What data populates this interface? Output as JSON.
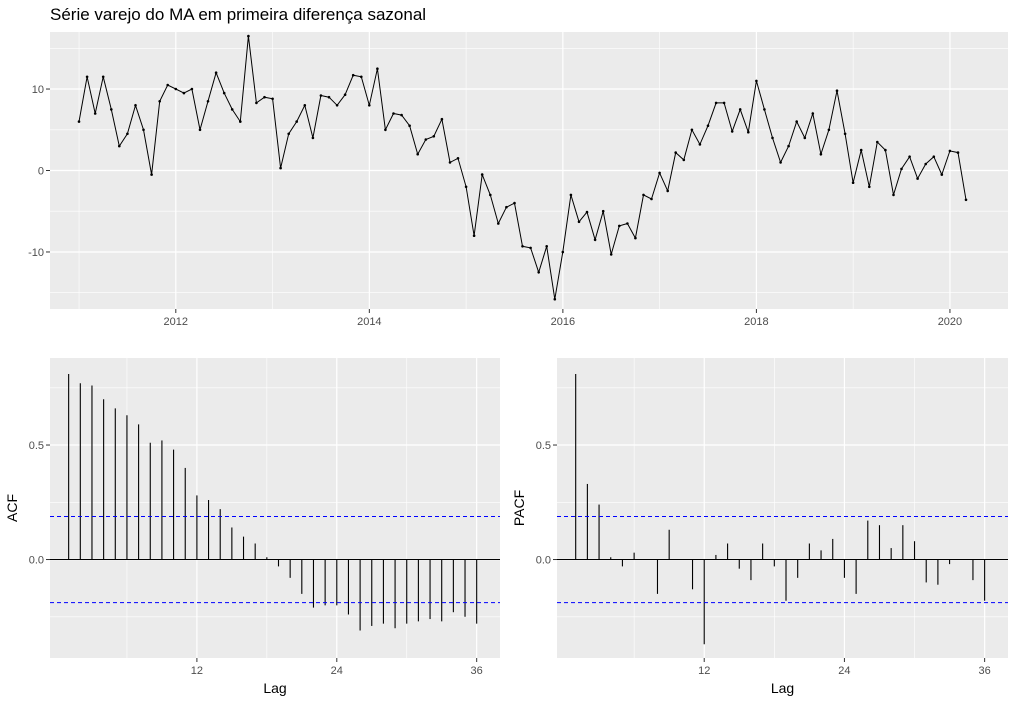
{
  "chart_data": [
    {
      "type": "line",
      "title": "Série varejo do MA em primeira diferença sazonal",
      "xlabel": "",
      "ylabel": "",
      "x_start": 2011.0,
      "x_step": 0.08333,
      "xlim": [
        2010.7,
        2020.6
      ],
      "ylim": [
        -17,
        17
      ],
      "x_ticks": [
        2012,
        2014,
        2016,
        2018,
        2020
      ],
      "x_tick_labels": [
        "2012",
        "2014",
        "2016",
        "2018",
        "2020"
      ],
      "y_ticks": [
        -10,
        0,
        10
      ],
      "y_tick_labels": [
        "-10",
        "0",
        "10"
      ],
      "grid": true,
      "series": [
        {
          "values": [
            6,
            11.5,
            7,
            11.5,
            7.5,
            3,
            4.5,
            8,
            5,
            -0.5,
            8.5,
            10.5,
            10,
            9.5,
            10,
            5,
            8.5,
            12,
            9.5,
            7.5,
            6,
            16.5,
            8.3,
            9,
            8.8,
            0.3,
            4.5,
            6,
            8,
            4,
            9.2,
            9,
            8,
            9.3,
            11.7,
            11.5,
            8,
            12.5,
            5,
            7,
            6.8,
            5.5,
            2,
            3.8,
            4.2,
            6.3,
            1,
            1.5,
            -2,
            -8,
            -0.5,
            -3,
            -6.5,
            -4.5,
            -4,
            -9.3,
            -9.5,
            -12.5,
            -9.3,
            -15.8,
            -10,
            -3,
            -6.3,
            -5.1,
            -8.5,
            -5,
            -10.3,
            -6.8,
            -6.5,
            -8.3,
            -3,
            -3.5,
            -0.3,
            -2.5,
            2.2,
            1.3,
            5,
            3.2,
            5.5,
            8.3,
            8.3,
            4.8,
            7.5,
            4.7,
            11,
            7.5,
            4,
            1,
            3,
            6,
            4,
            7,
            2,
            5,
            9.8,
            4.5,
            -1.5,
            2.5,
            -2,
            3.5,
            2.5,
            -3,
            0.2,
            1.7,
            -1,
            0.8,
            1.7,
            -0.5,
            2.4,
            2.2,
            -3.6
          ]
        }
      ]
    },
    {
      "type": "bar",
      "title": "",
      "xlabel": "Lag",
      "ylabel": "ACF",
      "xlim": [
        -0.6,
        38
      ],
      "ylim": [
        -0.43,
        0.88
      ],
      "x_ticks": [
        12,
        24,
        36
      ],
      "x_tick_labels": [
        "12",
        "24",
        "36"
      ],
      "y_ticks": [
        0,
        0.5
      ],
      "y_tick_labels": [
        "0.0",
        "0.5"
      ],
      "conf_limit": 0.188,
      "grid": true,
      "values": [
        0.81,
        0.77,
        0.76,
        0.7,
        0.66,
        0.63,
        0.59,
        0.51,
        0.52,
        0.48,
        0.4,
        0.28,
        0.26,
        0.22,
        0.14,
        0.1,
        0.07,
        0.01,
        -0.03,
        -0.08,
        -0.15,
        -0.21,
        -0.2,
        -0.2,
        -0.24,
        -0.31,
        -0.29,
        -0.28,
        -0.3,
        -0.28,
        -0.27,
        -0.26,
        -0.27,
        -0.23,
        -0.25,
        -0.28
      ]
    },
    {
      "type": "bar",
      "title": "",
      "xlabel": "Lag",
      "ylabel": "PACF",
      "xlim": [
        -0.6,
        38
      ],
      "ylim": [
        -0.43,
        0.88
      ],
      "x_ticks": [
        12,
        24,
        36
      ],
      "x_tick_labels": [
        "12",
        "24",
        "36"
      ],
      "y_ticks": [
        0,
        0.5
      ],
      "y_tick_labels": [
        "0.0",
        "0.5"
      ],
      "conf_limit": 0.188,
      "grid": true,
      "values": [
        0.81,
        0.33,
        0.24,
        0.01,
        -0.03,
        0.03,
        0.0,
        -0.15,
        0.13,
        0.0,
        -0.13,
        -0.37,
        0.02,
        0.07,
        -0.04,
        -0.09,
        0.07,
        -0.03,
        -0.18,
        -0.08,
        0.07,
        0.04,
        0.09,
        -0.08,
        -0.15,
        0.17,
        0.15,
        0.05,
        0.15,
        0.08,
        -0.1,
        -0.11,
        -0.02,
        0.0,
        -0.09,
        -0.18
      ]
    }
  ]
}
